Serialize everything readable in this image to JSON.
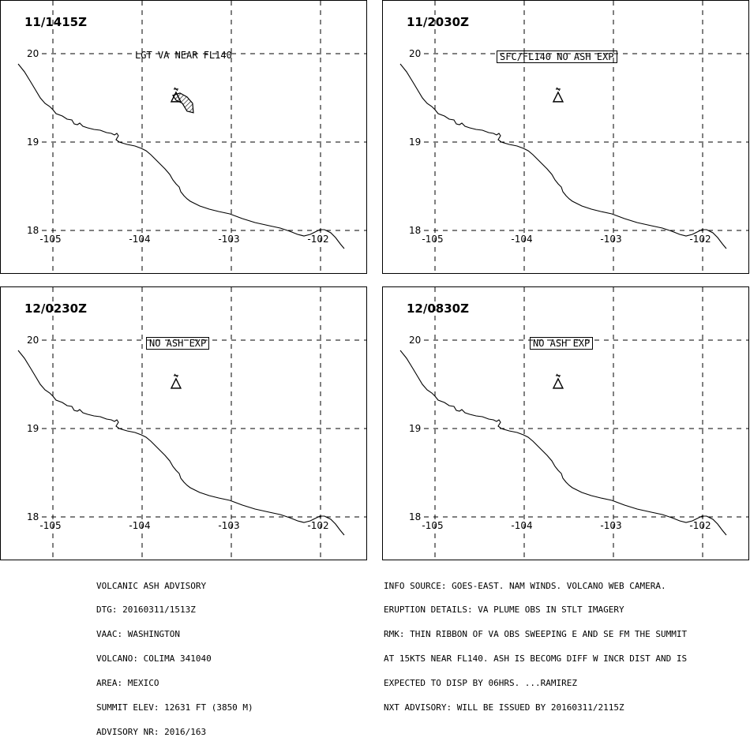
{
  "panels": [
    {
      "time": "11/1415Z",
      "note": "LGT VA NEAR FL140",
      "note_boxed": false,
      "ash": true
    },
    {
      "time": "11/2030Z",
      "note": "SFC/FL140 NO ASH EXP",
      "note_boxed": true,
      "ash": false
    },
    {
      "time": "12/0230Z",
      "note": "NO ASH EXP",
      "note_boxed": true,
      "ash": false
    },
    {
      "time": "12/0830Z",
      "note": "NO ASH EXP",
      "note_boxed": true,
      "ash": false
    }
  ],
  "map": {
    "lat_labels": [
      "20",
      "19",
      "18"
    ],
    "lon_labels": [
      "-105",
      "-104",
      "-103",
      "-102"
    ],
    "lat_values": [
      20,
      19,
      18
    ],
    "lon_values": [
      -105,
      -104,
      -103,
      -102
    ],
    "volcano_symbol": "volcano-triangle-icon",
    "volcano_lat": 19.51,
    "volcano_lon": -103.62
  },
  "advisory_left": [
    "VOLCANIC ASH ADVISORY",
    "DTG: 20160311/1513Z",
    "VAAC: WASHINGTON",
    "VOLCANO: COLIMA 341040",
    "AREA: MEXICO",
    "SUMMIT ELEV: 12631 FT (3850 M)",
    "ADVISORY NR: 2016/163"
  ],
  "advisory_right": [
    "INFO SOURCE: GOES-EAST. NAM WINDS. VOLCANO WEB CAMERA.",
    "ERUPTION DETAILS: VA PLUME OBS IN STLT IMAGERY",
    "RMK: THIN RIBBON OF VA OBS SWEEPING E AND SE FM THE SUMMIT",
    "AT 15KTS NEAR FL140. ASH IS BECOMG DIFF W INCR DIST AND IS",
    "EXPECTED TO DISP BY 06HRS. ...RAMIREZ",
    "NXT ADVISORY: WILL BE ISSUED BY 20160311/2115Z"
  ]
}
